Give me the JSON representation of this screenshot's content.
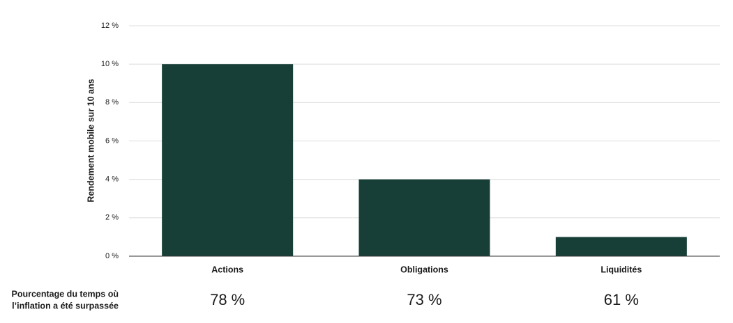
{
  "chart_data": {
    "type": "bar",
    "y_label": "Rendement mobile sur 10 ans",
    "categories": [
      "Actions",
      "Obligations",
      "Liquidités"
    ],
    "values": [
      10,
      4,
      1
    ],
    "color": "#173f37",
    "ylim": [
      0,
      12
    ],
    "yticks": [
      {
        "value": 0,
        "label": "0 %"
      },
      {
        "value": 2,
        "label": "2 %"
      },
      {
        "value": 4,
        "label": "4 %"
      },
      {
        "value": 6,
        "label": "6 %"
      },
      {
        "value": 8,
        "label": "8 %"
      },
      {
        "value": 10,
        "label": "10 %"
      },
      {
        "value": 12,
        "label": "12 %"
      }
    ],
    "grid": true,
    "inflation_row": {
      "label": [
        "Pourcentage du temps où",
        "l’inflation a été surpassée"
      ],
      "values": [
        78,
        73,
        61
      ],
      "value_labels": [
        "78 %",
        "73 %",
        "61 %"
      ]
    }
  }
}
